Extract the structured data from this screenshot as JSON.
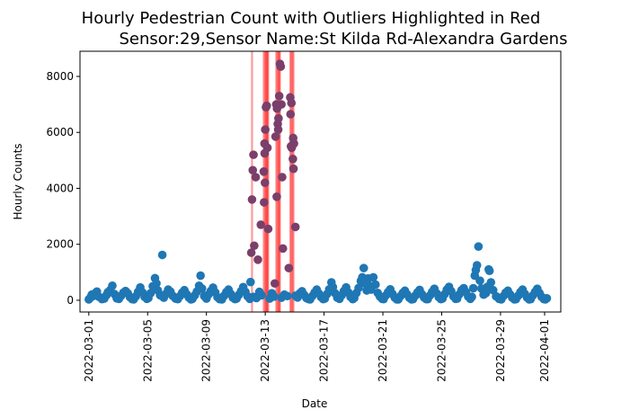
{
  "chart_data": {
    "type": "scatter",
    "title_line1": "Hourly Pedestrian Count with Outliers Highlighted in Red",
    "title_line2": "Sensor:29,Sensor Name:St Kilda Rd-Alexandra Gardens",
    "xlabel": "Date",
    "ylabel": "Hourly Counts",
    "xlim": [
      -0.6,
      32.1
    ],
    "ylim": [
      -420,
      8900
    ],
    "grid": false,
    "x_ticks": [
      {
        "value": 0,
        "label": "2022-03-01"
      },
      {
        "value": 4,
        "label": "2022-03-05"
      },
      {
        "value": 8,
        "label": "2022-03-09"
      },
      {
        "value": 12,
        "label": "2022-03-13"
      },
      {
        "value": 16,
        "label": "2022-03-17"
      },
      {
        "value": 20,
        "label": "2022-03-21"
      },
      {
        "value": 24,
        "label": "2022-03-25"
      },
      {
        "value": 28,
        "label": "2022-03-29"
      },
      {
        "value": 31,
        "label": "2022-04-01"
      }
    ],
    "y_ticks": [
      {
        "value": 0,
        "label": "0"
      },
      {
        "value": 2000,
        "label": "2000"
      },
      {
        "value": 4000,
        "label": "4000"
      },
      {
        "value": 6000,
        "label": "6000"
      },
      {
        "value": 8000,
        "label": "8000"
      }
    ],
    "colors": {
      "normal": "#1f77b4",
      "outlier_line": "#ff0000",
      "outlier_overlay": "#7a3f6a"
    },
    "outlier_lines_x": [
      11.1,
      11.9,
      11.98,
      12.05,
      12.1,
      12.15,
      12.2,
      12.75,
      12.82,
      12.9,
      12.95,
      13.0,
      13.7,
      13.78,
      13.85,
      13.92
    ],
    "normal_points": [
      [
        0.0,
        30
      ],
      [
        0.1,
        90
      ],
      [
        0.2,
        200
      ],
      [
        0.3,
        150
      ],
      [
        0.45,
        260
      ],
      [
        0.55,
        310
      ],
      [
        0.7,
        120
      ],
      [
        0.9,
        40
      ],
      [
        1.05,
        60
      ],
      [
        1.2,
        180
      ],
      [
        1.3,
        290
      ],
      [
        1.45,
        360
      ],
      [
        1.6,
        520
      ],
      [
        1.75,
        220
      ],
      [
        1.9,
        70
      ],
      [
        2.05,
        50
      ],
      [
        2.2,
        160
      ],
      [
        2.35,
        270
      ],
      [
        2.5,
        330
      ],
      [
        2.65,
        250
      ],
      [
        2.8,
        110
      ],
      [
        2.95,
        40
      ],
      [
        3.05,
        30
      ],
      [
        3.2,
        140
      ],
      [
        3.35,
        300
      ],
      [
        3.5,
        460
      ],
      [
        3.65,
        280
      ],
      [
        3.8,
        120
      ],
      [
        3.95,
        50
      ],
      [
        4.05,
        80
      ],
      [
        4.2,
        250
      ],
      [
        4.35,
        500
      ],
      [
        4.5,
        790
      ],
      [
        4.6,
        600
      ],
      [
        4.7,
        350
      ],
      [
        4.85,
        180
      ],
      [
        5.0,
        1620
      ],
      [
        5.1,
        90
      ],
      [
        5.25,
        230
      ],
      [
        5.4,
        380
      ],
      [
        5.55,
        310
      ],
      [
        5.7,
        160
      ],
      [
        5.9,
        60
      ],
      [
        6.05,
        40
      ],
      [
        6.2,
        150
      ],
      [
        6.35,
        270
      ],
      [
        6.5,
        360
      ],
      [
        6.65,
        220
      ],
      [
        6.8,
        100
      ],
      [
        6.95,
        30
      ],
      [
        7.05,
        50
      ],
      [
        7.2,
        170
      ],
      [
        7.35,
        310
      ],
      [
        7.5,
        520
      ],
      [
        7.6,
        880
      ],
      [
        7.7,
        420
      ],
      [
        7.85,
        150
      ],
      [
        8.0,
        60
      ],
      [
        8.15,
        210
      ],
      [
        8.3,
        330
      ],
      [
        8.45,
        450
      ],
      [
        8.6,
        280
      ],
      [
        8.75,
        110
      ],
      [
        8.9,
        40
      ],
      [
        9.05,
        30
      ],
      [
        9.2,
        160
      ],
      [
        9.35,
        290
      ],
      [
        9.5,
        380
      ],
      [
        9.65,
        230
      ],
      [
        9.8,
        90
      ],
      [
        9.95,
        40
      ],
      [
        10.05,
        60
      ],
      [
        10.2,
        190
      ],
      [
        10.35,
        320
      ],
      [
        10.5,
        470
      ],
      [
        10.65,
        300
      ],
      [
        10.8,
        140
      ],
      [
        10.95,
        50
      ],
      [
        11.0,
        650
      ],
      [
        11.2,
        120
      ],
      [
        11.4,
        80
      ],
      [
        11.6,
        300
      ],
      [
        11.75,
        180
      ],
      [
        12.3,
        60
      ],
      [
        12.45,
        250
      ],
      [
        12.6,
        130
      ],
      [
        13.1,
        90
      ],
      [
        13.3,
        200
      ],
      [
        13.5,
        150
      ],
      [
        14.05,
        160
      ],
      [
        14.2,
        100
      ],
      [
        14.35,
        250
      ],
      [
        14.5,
        320
      ],
      [
        14.65,
        190
      ],
      [
        14.8,
        80
      ],
      [
        14.95,
        40
      ],
      [
        15.05,
        30
      ],
      [
        15.2,
        150
      ],
      [
        15.35,
        270
      ],
      [
        15.5,
        380
      ],
      [
        15.65,
        240
      ],
      [
        15.8,
        110
      ],
      [
        15.95,
        40
      ],
      [
        16.05,
        60
      ],
      [
        16.2,
        220
      ],
      [
        16.35,
        390
      ],
      [
        16.5,
        640
      ],
      [
        16.6,
        470
      ],
      [
        16.75,
        250
      ],
      [
        16.9,
        90
      ],
      [
        17.05,
        50
      ],
      [
        17.2,
        180
      ],
      [
        17.35,
        330
      ],
      [
        17.5,
        460
      ],
      [
        17.65,
        280
      ],
      [
        17.8,
        120
      ],
      [
        17.95,
        40
      ],
      [
        18.05,
        80
      ],
      [
        18.2,
        260
      ],
      [
        18.35,
        440
      ],
      [
        18.5,
        690
      ],
      [
        18.6,
        820
      ],
      [
        18.7,
        1150
      ],
      [
        18.8,
        600
      ],
      [
        18.9,
        350
      ],
      [
        19.0,
        780
      ],
      [
        19.1,
        520
      ],
      [
        19.2,
        380
      ],
      [
        19.35,
        820
      ],
      [
        19.5,
        560
      ],
      [
        19.65,
        260
      ],
      [
        19.8,
        130
      ],
      [
        19.95,
        50
      ],
      [
        20.05,
        40
      ],
      [
        20.2,
        170
      ],
      [
        20.35,
        290
      ],
      [
        20.5,
        390
      ],
      [
        20.65,
        230
      ],
      [
        20.8,
        100
      ],
      [
        20.95,
        30
      ],
      [
        21.05,
        30
      ],
      [
        21.2,
        150
      ],
      [
        21.35,
        260
      ],
      [
        21.5,
        340
      ],
      [
        21.65,
        210
      ],
      [
        21.8,
        90
      ],
      [
        21.95,
        30
      ],
      [
        22.05,
        40
      ],
      [
        22.2,
        160
      ],
      [
        22.35,
        280
      ],
      [
        22.5,
        370
      ],
      [
        22.65,
        220
      ],
      [
        22.8,
        100
      ],
      [
        22.95,
        40
      ],
      [
        23.05,
        40
      ],
      [
        23.2,
        170
      ],
      [
        23.35,
        300
      ],
      [
        23.5,
        410
      ],
      [
        23.65,
        250
      ],
      [
        23.8,
        110
      ],
      [
        23.95,
        40
      ],
      [
        24.05,
        60
      ],
      [
        24.2,
        220
      ],
      [
        24.35,
        380
      ],
      [
        24.5,
        480
      ],
      [
        24.65,
        320
      ],
      [
        24.8,
        140
      ],
      [
        24.95,
        50
      ],
      [
        25.05,
        60
      ],
      [
        25.2,
        210
      ],
      [
        25.35,
        360
      ],
      [
        25.5,
        430
      ],
      [
        25.65,
        290
      ],
      [
        25.8,
        130
      ],
      [
        25.95,
        50
      ],
      [
        26.05,
        120
      ],
      [
        26.15,
        430
      ],
      [
        26.25,
        880
      ],
      [
        26.32,
        1080
      ],
      [
        26.4,
        1250
      ],
      [
        26.5,
        1920
      ],
      [
        26.6,
        700
      ],
      [
        26.7,
        420
      ],
      [
        26.85,
        200
      ],
      [
        27.0,
        250
      ],
      [
        27.1,
        480
      ],
      [
        27.2,
        1100
      ],
      [
        27.25,
        1050
      ],
      [
        27.35,
        640
      ],
      [
        27.5,
        360
      ],
      [
        27.7,
        140
      ],
      [
        27.9,
        50
      ],
      [
        28.05,
        30
      ],
      [
        28.2,
        150
      ],
      [
        28.35,
        270
      ],
      [
        28.5,
        340
      ],
      [
        28.65,
        210
      ],
      [
        28.8,
        90
      ],
      [
        28.95,
        30
      ],
      [
        29.05,
        40
      ],
      [
        29.2,
        160
      ],
      [
        29.35,
        290
      ],
      [
        29.5,
        380
      ],
      [
        29.65,
        230
      ],
      [
        29.8,
        100
      ],
      [
        29.95,
        30
      ],
      [
        30.05,
        40
      ],
      [
        30.2,
        170
      ],
      [
        30.35,
        300
      ],
      [
        30.5,
        410
      ],
      [
        30.65,
        260
      ],
      [
        30.8,
        120
      ],
      [
        30.95,
        40
      ],
      [
        31.05,
        30
      ],
      [
        31.15,
        70
      ]
    ],
    "outlier_points": [
      [
        11.1,
        3600
      ],
      [
        11.15,
        4650
      ],
      [
        11.2,
        5200
      ],
      [
        11.25,
        1950
      ],
      [
        11.35,
        4400
      ],
      [
        11.05,
        1700
      ],
      [
        11.5,
        1450
      ],
      [
        11.9,
        4600
      ],
      [
        11.95,
        5600
      ],
      [
        12.0,
        6100
      ],
      [
        12.05,
        6900
      ],
      [
        12.1,
        6950
      ],
      [
        12.15,
        5450
      ],
      [
        11.98,
        4200
      ],
      [
        11.7,
        2700
      ],
      [
        12.2,
        2550
      ],
      [
        11.92,
        3500
      ],
      [
        11.96,
        5250
      ],
      [
        12.75,
        7000
      ],
      [
        12.8,
        6850
      ],
      [
        12.85,
        6300
      ],
      [
        12.9,
        6500
      ],
      [
        12.95,
        7300
      ],
      [
        13.0,
        8450
      ],
      [
        13.05,
        8350
      ],
      [
        12.7,
        5850
      ],
      [
        12.78,
        3700
      ],
      [
        12.88,
        6100
      ],
      [
        13.1,
        7000
      ],
      [
        13.15,
        4400
      ],
      [
        13.2,
        1850
      ],
      [
        12.65,
        600
      ],
      [
        13.7,
        7250
      ],
      [
        13.72,
        6650
      ],
      [
        13.78,
        7050
      ],
      [
        13.85,
        5550
      ],
      [
        13.9,
        5800
      ],
      [
        13.95,
        5600
      ],
      [
        13.8,
        5450
      ],
      [
        13.88,
        5050
      ],
      [
        13.92,
        4700
      ],
      [
        14.05,
        2620
      ],
      [
        13.6,
        1150
      ],
      [
        13.75,
        5500
      ]
    ]
  }
}
